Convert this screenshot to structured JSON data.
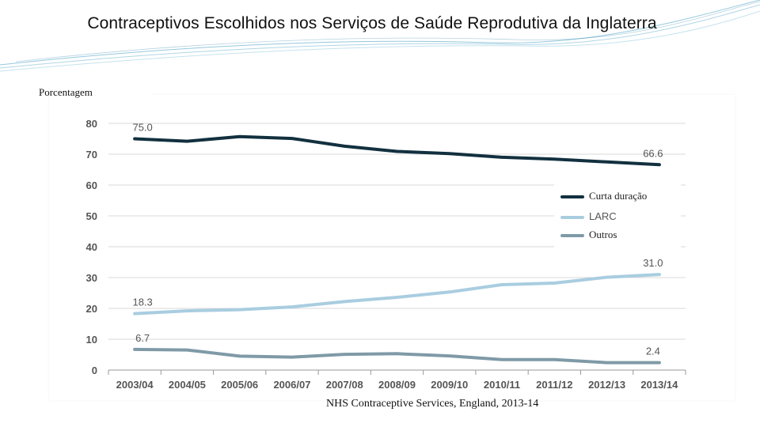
{
  "page": {
    "title": "Contraceptivos Escolhidos nos Serviços de Saúde Reprodutiva da Inglaterra",
    "source": "NHS Contraceptive Services, England, 2013-14",
    "y_axis_caption": "Porcentagem"
  },
  "colors": {
    "curta": "#12303f",
    "larc": "#a9cde0",
    "outros": "#7f9aa7",
    "grid": "#d9d9d9",
    "tick_text": "#555555",
    "decor": "#4fa3c7"
  },
  "chart_data": {
    "type": "line",
    "categories": [
      "2003/04",
      "2004/05",
      "2005/06",
      "2006/07",
      "2007/08",
      "2008/09",
      "2009/10",
      "2010/11",
      "2011/12",
      "2012/13",
      "2013/14"
    ],
    "ylim": [
      0,
      80
    ],
    "yticks": [
      0,
      10,
      20,
      30,
      40,
      50,
      60,
      70,
      80
    ],
    "grid": true,
    "legend_position": "right",
    "series": [
      {
        "name": "Curta duração",
        "values": [
          75.0,
          74.2,
          75.7,
          75.1,
          72.6,
          70.9,
          70.2,
          69.0,
          68.4,
          67.5,
          66.6
        ],
        "color": "#12303f"
      },
      {
        "name": "LARC",
        "values": [
          18.3,
          19.2,
          19.6,
          20.5,
          22.2,
          23.6,
          25.3,
          27.7,
          28.2,
          30.1,
          31.0
        ],
        "color": "#a9cde0"
      },
      {
        "name": "Outros",
        "values": [
          6.7,
          6.5,
          4.5,
          4.2,
          5.1,
          5.3,
          4.6,
          3.4,
          3.4,
          2.4,
          2.4
        ],
        "color": "#7f9aa7"
      }
    ],
    "data_labels": [
      {
        "series": 0,
        "index": 0,
        "text": "75.0"
      },
      {
        "series": 0,
        "index": 10,
        "text": "66.6"
      },
      {
        "series": 1,
        "index": 0,
        "text": "18.3"
      },
      {
        "series": 1,
        "index": 10,
        "text": "31.0"
      },
      {
        "series": 2,
        "index": 0,
        "text": "6.7"
      },
      {
        "series": 2,
        "index": 10,
        "text": "2.4"
      }
    ]
  }
}
